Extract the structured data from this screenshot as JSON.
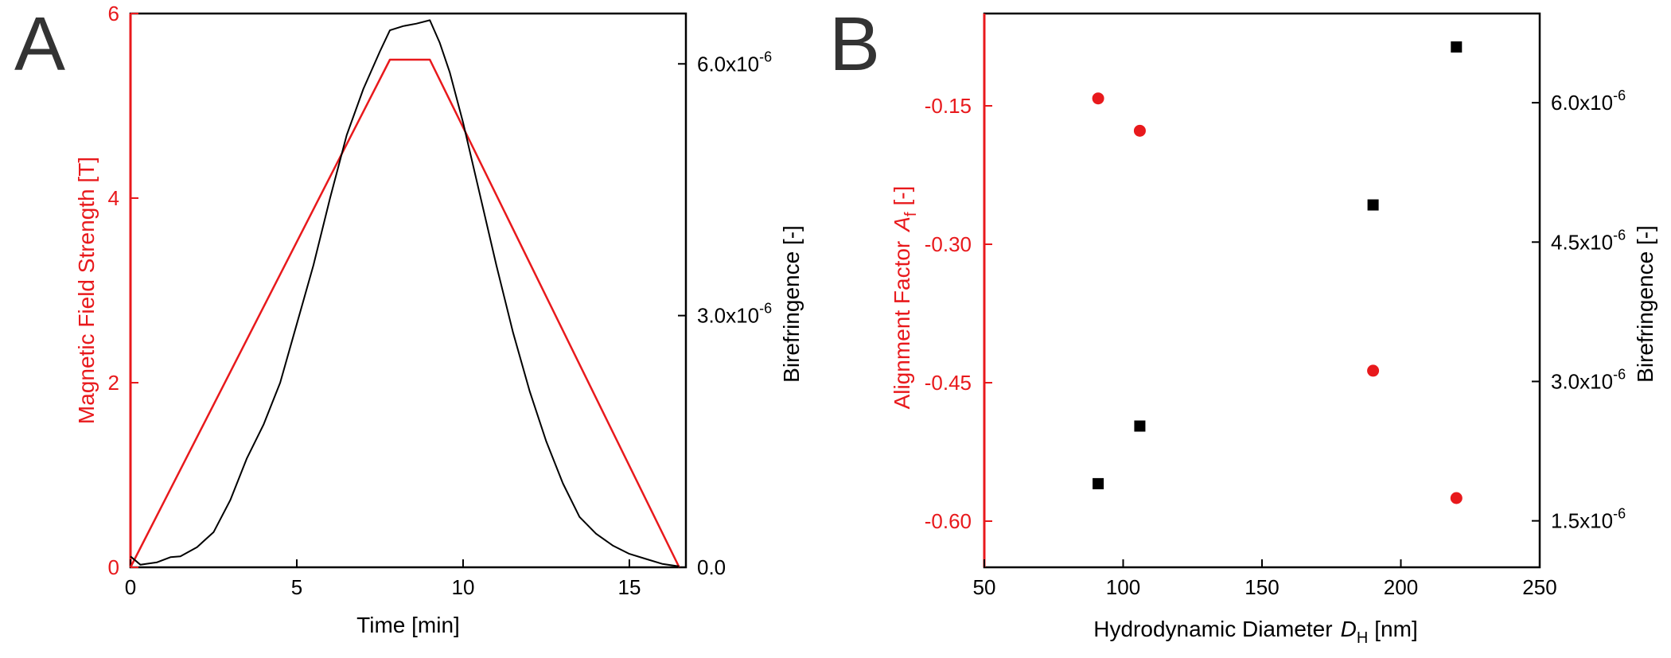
{
  "colors": {
    "field": "#e8191c",
    "axis_black": "#000000",
    "background": "#ffffff"
  },
  "chart_data": [
    {
      "panel_label": "A",
      "type": "line",
      "xlabel": "Time  [min]",
      "ylabel_left": "Magnetic Field Strength [T]",
      "ylabel_right": "Birefringence [-]",
      "xlim": [
        0,
        16.7
      ],
      "ylim_left": [
        0,
        6
      ],
      "ylim_right": [
        0,
        6.6e-06
      ],
      "x_ticks": [
        0,
        5,
        10,
        15
      ],
      "y_left_ticks": [
        0,
        2,
        4,
        6
      ],
      "y_right_ticks": [
        {
          "value": 0,
          "mantissa": "0.0",
          "exponent": ""
        },
        {
          "value": 3e-06,
          "mantissa": "3.0x10",
          "exponent": "-6"
        },
        {
          "value": 6e-06,
          "mantissa": "6.0x10",
          "exponent": "-6"
        }
      ],
      "series": [
        {
          "name": "Magnetic Field Strength",
          "axis": "left",
          "color": "#e8191c",
          "points": [
            [
              0,
              0
            ],
            [
              7.8,
              5.5
            ],
            [
              9.0,
              5.5
            ],
            [
              16.5,
              0
            ]
          ]
        },
        {
          "name": "Birefringence",
          "axis": "right",
          "color": "#000000",
          "points": [
            [
              0,
              1.3e-07
            ],
            [
              0.3,
              3e-08
            ],
            [
              0.8,
              6e-08
            ],
            [
              1.2,
              1.2e-07
            ],
            [
              1.5,
              1.3e-07
            ],
            [
              2.0,
              2.4e-07
            ],
            [
              2.5,
              4.2e-07
            ],
            [
              3.0,
              8e-07
            ],
            [
              3.5,
              1.3e-06
            ],
            [
              4.0,
              1.7e-06
            ],
            [
              4.5,
              2.2e-06
            ],
            [
              5.0,
              2.9e-06
            ],
            [
              5.5,
              3.6e-06
            ],
            [
              6.0,
              4.4e-06
            ],
            [
              6.5,
              5.15e-06
            ],
            [
              7.0,
              5.7e-06
            ],
            [
              7.5,
              6.15e-06
            ],
            [
              7.8,
              6.4e-06
            ],
            [
              8.2,
              6.45e-06
            ],
            [
              8.6,
              6.48e-06
            ],
            [
              9.0,
              6.52e-06
            ],
            [
              9.3,
              6.25e-06
            ],
            [
              9.6,
              5.9e-06
            ],
            [
              10.0,
              5.3e-06
            ],
            [
              10.5,
              4.45e-06
            ],
            [
              11.0,
              3.6e-06
            ],
            [
              11.5,
              2.8e-06
            ],
            [
              12.0,
              2.1e-06
            ],
            [
              12.5,
              1.5e-06
            ],
            [
              13.0,
              1e-06
            ],
            [
              13.5,
              6e-07
            ],
            [
              14.0,
              4e-07
            ],
            [
              14.5,
              2.6e-07
            ],
            [
              15.0,
              1.6e-07
            ],
            [
              15.5,
              1e-07
            ],
            [
              16.0,
              4e-08
            ],
            [
              16.5,
              1e-08
            ]
          ]
        }
      ]
    },
    {
      "panel_label": "B",
      "type": "scatter",
      "xlabel": "Hydrodynamic Diameter",
      "xlabel_symbol": "D",
      "xlabel_subscript": "H",
      "xlabel_unit": "[nm]",
      "ylabel_left": "Alignment Factor",
      "ylabel_left_symbol": "A",
      "ylabel_left_subscript": "f",
      "ylabel_left_unit": "[-]",
      "ylabel_right": "Birefringence [-]",
      "xlim": [
        50,
        250
      ],
      "ylim_left": [
        -0.65,
        -0.05
      ],
      "ylim_right": [
        1e-06,
        6.96e-06
      ],
      "x_ticks": [
        50,
        100,
        150,
        200,
        250
      ],
      "y_left_ticks": [
        "-0.15",
        "-0.30",
        "-0.45",
        "-0.60"
      ],
      "y_right_ticks": [
        {
          "value": 1.5e-06,
          "mantissa": "1.5x10",
          "exponent": "-6"
        },
        {
          "value": 3e-06,
          "mantissa": "3.0x10",
          "exponent": "-6"
        },
        {
          "value": 4.5e-06,
          "mantissa": "4.5x10",
          "exponent": "-6"
        },
        {
          "value": 6e-06,
          "mantissa": "6.0x10",
          "exponent": "-6"
        }
      ],
      "series": [
        {
          "name": "Alignment Factor",
          "axis": "left",
          "marker": "circle",
          "color": "#e8191c",
          "points": [
            [
              91,
              -0.142
            ],
            [
              106,
              -0.177
            ],
            [
              190,
              -0.437
            ],
            [
              220,
              -0.575
            ]
          ]
        },
        {
          "name": "Birefringence",
          "axis": "right",
          "marker": "square",
          "color": "#000000",
          "points": [
            [
              91,
              1.9e-06
            ],
            [
              106,
              2.52e-06
            ],
            [
              190,
              4.9e-06
            ],
            [
              220,
              6.6e-06
            ]
          ]
        }
      ]
    }
  ]
}
